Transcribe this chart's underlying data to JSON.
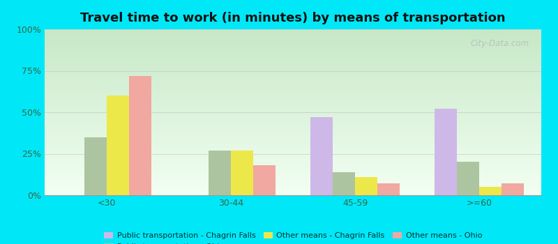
{
  "title": "Travel time to work (in minutes) by means of transportation",
  "categories": [
    "<30",
    "30-44",
    "45-59",
    ">=60"
  ],
  "series_order": [
    "Public transportation - Chagrin Falls",
    "Public transportation - Ohio",
    "Other means - Chagrin Falls",
    "Other means - Ohio"
  ],
  "series": {
    "Public transportation - Chagrin Falls": [
      0,
      0,
      47,
      52
    ],
    "Public transportation - Ohio": [
      35,
      27,
      14,
      20
    ],
    "Other means - Chagrin Falls": [
      60,
      27,
      11,
      5
    ],
    "Other means - Ohio": [
      72,
      18,
      7,
      7
    ]
  },
  "colors": {
    "Public transportation - Chagrin Falls": "#cdb8e8",
    "Public transportation - Ohio": "#adc4a0",
    "Other means - Chagrin Falls": "#ede84a",
    "Other means - Ohio": "#f0a8a0"
  },
  "background_color": "#00e8f8",
  "plot_bg_top": "#c8e8c8",
  "plot_bg_bottom": "#f0fff0",
  "ylim": [
    0,
    100
  ],
  "yticks": [
    0,
    25,
    50,
    75,
    100
  ],
  "ytick_labels": [
    "0%",
    "25%",
    "50%",
    "75%",
    "100%"
  ],
  "grid_color": "#cccccc",
  "bar_width": 0.18,
  "title_fontsize": 13,
  "tick_fontsize": 9,
  "legend_fontsize": 8
}
